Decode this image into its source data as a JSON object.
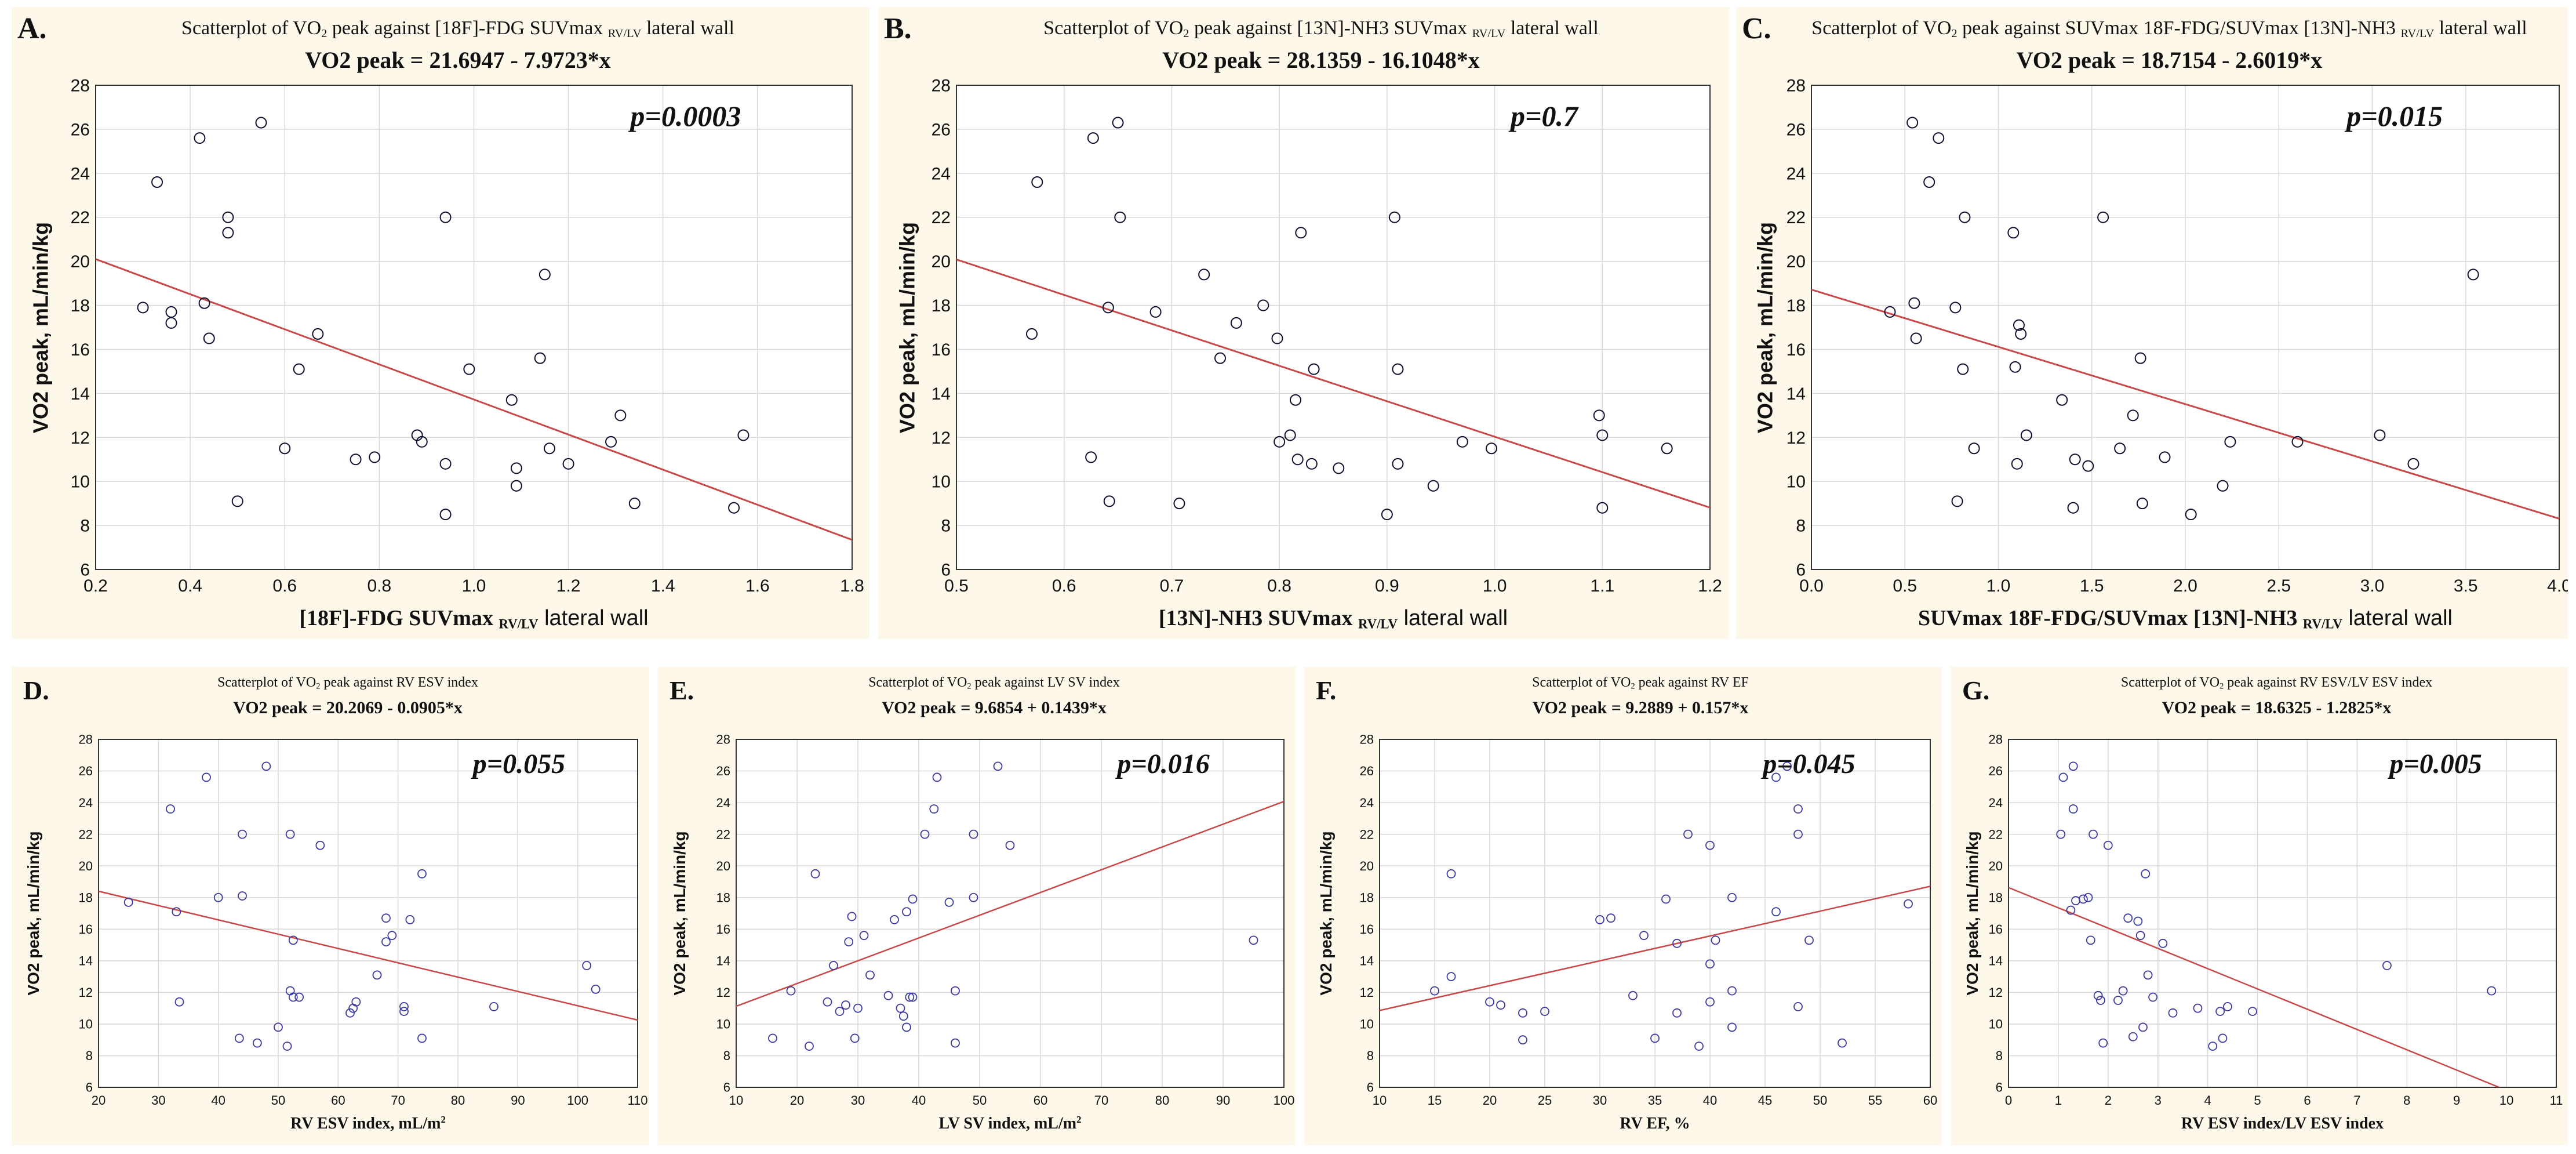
{
  "panels": [
    {
      "letter": "A.",
      "title_pre": "Scatterplot of VO",
      "title_sub": "2",
      "title_post": " peak against [18F]-FDG SUVmax ",
      "title_sub2": "RV/LV",
      "title_tail": " lateral wall",
      "formula": "VO2 peak = 21.6947 - 7.9723*x",
      "xlabel_main": "[18F]-FDG SUVmax ",
      "xlabel_sub": "RV/LV",
      "xlabel_tail": " lateral wall",
      "ylabel": "VO2 peak, mL/min/kg",
      "pvalue": "p=0.0003"
    },
    {
      "letter": "B.",
      "title_pre": "Scatterplot of VO",
      "title_sub": "2",
      "title_post": " peak against [13N]-NH3 SUVmax ",
      "title_sub2": "RV/LV",
      "title_tail": " lateral wall",
      "formula": "VO2 peak = 28.1359 - 16.1048*x",
      "xlabel_main": "[13N]-NH3 SUVmax ",
      "xlabel_sub": "RV/LV",
      "xlabel_tail": " lateral wall",
      "ylabel": "VO2 peak, mL/min/kg",
      "pvalue": "p=0.7"
    },
    {
      "letter": "C.",
      "title_pre": "Scatterplot of VO",
      "title_sub": "2",
      "title_post": " peak against SUVmax 18F-FDG/SUVmax [13N]-NH3 ",
      "title_sub2": "RV/LV",
      "title_tail": " lateral wall",
      "formula": "VO2 peak = 18.7154 - 2.6019*x",
      "xlabel_main": "SUVmax 18F-FDG/SUVmax [13N]-NH3 ",
      "xlabel_sub": "RV/LV",
      "xlabel_tail": " lateral wall",
      "ylabel": "VO2 peak, mL/min/kg",
      "pvalue": "p=0.015"
    },
    {
      "letter": "D.",
      "title_pre": "Scatterplot of VO",
      "title_sub": "2",
      "title_post": " peak against RV ESV index",
      "title_sub2": "",
      "title_tail": "",
      "formula": "VO2 peak = 20.2069 - 0.0905*x",
      "xlabel_main": "RV ESV index, mL/m",
      "xlabel_sub": "2",
      "xlabel_tail": "",
      "ylabel": "VO2 peak, mL/min/kg",
      "pvalue": "p=0.055"
    },
    {
      "letter": "E.",
      "title_pre": "Scatterplot of VO",
      "title_sub": "2",
      "title_post": " peak against LV SV index",
      "title_sub2": "",
      "title_tail": "",
      "formula": "VO2 peak = 9.6854 + 0.1439*x",
      "xlabel_main": "LV SV index, mL/m",
      "xlabel_sub": "2",
      "xlabel_tail": "",
      "ylabel": "VO2 peak, mL/min/kg",
      "pvalue": "p=0.016"
    },
    {
      "letter": "F.",
      "title_pre": "Scatterplot of VO",
      "title_sub": "2",
      "title_post": " peak against RV EF",
      "title_sub2": "",
      "title_tail": "",
      "formula": "VO2 peak = 9.2889 + 0.157*x",
      "xlabel_main": "RV EF, %",
      "xlabel_sub": "",
      "xlabel_tail": "",
      "ylabel": "VO2 peak, mL/min/kg",
      "pvalue": "p=0.045"
    },
    {
      "letter": "G.",
      "title_pre": "Scatterplot of VO",
      "title_sub": "2",
      "title_post": " peak against RV ESV/LV ESV index",
      "title_sub2": "",
      "title_tail": "",
      "formula": "VO2 peak = 18.6325 - 1.2825*x",
      "xlabel_main": "RV ESV index/LV ESV index",
      "xlabel_sub": "",
      "xlabel_tail": "",
      "ylabel": "VO2 peak, mL/min/kg",
      "pvalue": "p=0.005"
    }
  ],
  "colors": {
    "panel_bg": "#fdf8e9",
    "plot_bg": "#ffffff",
    "grid": "#d8d8d8",
    "regression": "#c84848",
    "marker_top": "#101030",
    "marker_bottom": "#3a3aa0"
  },
  "chart_data": [
    {
      "type": "scatter",
      "title": "Scatterplot of VO2 peak against [18F]-FDG SUVmax RV/LV lateral wall",
      "xlabel": "[18F]-FDG SUVmax RV/LV lateral wall",
      "ylabel": "VO2 peak, mL/min/kg",
      "xlim": [
        0.2,
        1.8
      ],
      "ylim": [
        6,
        28
      ],
      "xticks": [
        0.2,
        0.4,
        0.6,
        0.8,
        1.0,
        1.2,
        1.4,
        1.6,
        1.8
      ],
      "xtick_labels": [
        "0.2",
        "0.4",
        "0.6",
        "0.8",
        "1.0",
        "1.2",
        "1.4",
        "1.6",
        "1.8"
      ],
      "yticks": [
        6,
        8,
        10,
        12,
        14,
        16,
        18,
        20,
        22,
        24,
        26,
        28
      ],
      "grid": true,
      "regression": {
        "intercept": 21.6947,
        "slope": -7.9723
      },
      "x": [
        0.3,
        0.33,
        0.36,
        0.36,
        0.42,
        0.43,
        0.44,
        0.48,
        0.48,
        0.5,
        0.55,
        0.6,
        0.63,
        0.67,
        0.75,
        0.79,
        0.88,
        0.89,
        0.94,
        0.94,
        0.94,
        0.99,
        1.08,
        1.09,
        1.09,
        1.14,
        1.15,
        1.16,
        1.2,
        1.29,
        1.31,
        1.34,
        1.55,
        1.57
      ],
      "y": [
        17.9,
        23.6,
        17.2,
        17.7,
        25.6,
        18.1,
        16.5,
        22.0,
        21.3,
        9.1,
        26.3,
        11.5,
        15.1,
        16.7,
        11.0,
        11.1,
        12.1,
        11.8,
        22.0,
        10.8,
        8.5,
        15.1,
        13.7,
        9.8,
        10.6,
        15.6,
        19.4,
        11.5,
        10.8,
        11.8,
        13.0,
        9.0,
        8.8,
        12.1
      ]
    },
    {
      "type": "scatter",
      "title": "Scatterplot of VO2 peak against [13N]-NH3 SUVmax RV/LV lateral wall",
      "xlabel": "[13N]-NH3 SUVmax RV/LV lateral wall",
      "ylabel": "VO2 peak, mL/min/kg",
      "xlim": [
        0.5,
        1.2
      ],
      "ylim": [
        6,
        28
      ],
      "xticks": [
        0.5,
        0.6,
        0.7,
        0.8,
        0.9,
        1.0,
        1.1,
        1.2
      ],
      "xtick_labels": [
        "0.5",
        "0.6",
        "0.7",
        "0.8",
        "0.9",
        "1.0",
        "1.1",
        "1.2"
      ],
      "yticks": [
        6,
        8,
        10,
        12,
        14,
        16,
        18,
        20,
        22,
        24,
        26,
        28
      ],
      "grid": true,
      "regression": {
        "intercept": 28.1359,
        "slope": -16.1048
      },
      "x": [
        0.57,
        0.575,
        0.625,
        0.627,
        0.641,
        0.642,
        0.65,
        0.652,
        0.685,
        0.707,
        0.73,
        0.745,
        0.76,
        0.785,
        0.798,
        0.8,
        0.81,
        0.815,
        0.817,
        0.82,
        0.83,
        0.832,
        0.855,
        0.9,
        0.907,
        0.91,
        0.91,
        0.943,
        0.97,
        0.997,
        1.097,
        1.1,
        1.1,
        1.16
      ],
      "y": [
        16.7,
        23.6,
        11.1,
        25.6,
        17.9,
        9.1,
        26.3,
        22.0,
        17.7,
        9.0,
        19.4,
        15.6,
        17.2,
        18.0,
        16.5,
        11.8,
        12.1,
        13.7,
        11.0,
        21.3,
        10.8,
        15.1,
        10.6,
        8.5,
        22.0,
        15.1,
        10.8,
        9.8,
        11.8,
        11.5,
        13.0,
        12.1,
        8.8,
        11.5
      ]
    },
    {
      "type": "scatter",
      "title": "Scatterplot of VO2 peak against SUVmax 18F-FDG/SUVmax [13N]-NH3 RV/LV lateral wall",
      "xlabel": "SUVmax 18F-FDG/SUVmax [13N]-NH3 RV/LV lateral wall",
      "ylabel": "VO2 peak, mL/min/kg",
      "xlim": [
        0.0,
        4.0
      ],
      "ylim": [
        6,
        28
      ],
      "xticks": [
        0.0,
        0.5,
        1.0,
        1.5,
        2.0,
        2.5,
        3.0,
        3.5,
        4.0
      ],
      "xtick_labels": [
        "0.0",
        "0.5",
        "1.0",
        "1.5",
        "2.0",
        "2.5",
        "3.0",
        "3.5",
        "4.0"
      ],
      "yticks": [
        6,
        8,
        10,
        12,
        14,
        16,
        18,
        20,
        22,
        24,
        26,
        28
      ],
      "grid": true,
      "regression": {
        "intercept": 18.7154,
        "slope": -2.6019
      },
      "x": [
        0.42,
        0.54,
        0.55,
        0.56,
        0.63,
        0.68,
        0.77,
        0.78,
        0.81,
        0.82,
        0.87,
        1.08,
        1.09,
        1.1,
        1.11,
        1.12,
        1.15,
        1.34,
        1.4,
        1.41,
        1.48,
        1.56,
        1.65,
        1.72,
        1.76,
        1.77,
        1.89,
        2.03,
        2.2,
        2.24,
        2.6,
        3.04,
        3.22,
        3.54
      ],
      "y": [
        17.7,
        26.3,
        18.1,
        16.5,
        23.6,
        25.6,
        17.9,
        9.1,
        15.1,
        22.0,
        11.5,
        21.3,
        15.2,
        10.8,
        17.1,
        16.7,
        12.1,
        13.7,
        8.8,
        11.0,
        10.7,
        22.0,
        11.5,
        13.0,
        15.6,
        9.0,
        11.1,
        8.5,
        9.8,
        11.8,
        11.8,
        12.1,
        10.8,
        19.4
      ]
    },
    {
      "type": "scatter",
      "title": "Scatterplot of VO2 peak against RV ESV index",
      "xlabel": "RV ESV index, mL/m2",
      "ylabel": "VO2 peak, mL/min/kg",
      "xlim": [
        20,
        110
      ],
      "ylim": [
        6,
        28
      ],
      "xticks": [
        20,
        30,
        40,
        50,
        60,
        70,
        80,
        90,
        100,
        110
      ],
      "xtick_labels": [
        "20",
        "30",
        "40",
        "50",
        "60",
        "70",
        "80",
        "90",
        "100",
        "110"
      ],
      "yticks": [
        6,
        8,
        10,
        12,
        14,
        16,
        18,
        20,
        22,
        24,
        26,
        28
      ],
      "grid": true,
      "regression": {
        "intercept": 20.2069,
        "slope": -0.0905
      },
      "x": [
        25,
        32,
        33,
        33.5,
        38,
        40,
        43.5,
        44,
        44,
        46.5,
        48,
        50,
        51.5,
        52,
        52,
        52.5,
        52.5,
        53.5,
        57,
        62,
        62.5,
        63,
        66.5,
        68,
        68,
        69,
        71,
        71,
        72,
        74,
        74,
        86,
        101.5,
        103
      ],
      "y": [
        17.7,
        23.6,
        17.1,
        11.4,
        25.6,
        18.0,
        9.1,
        22.0,
        18.1,
        8.8,
        26.3,
        9.8,
        8.6,
        12.1,
        22.0,
        15.3,
        11.7,
        11.7,
        21.3,
        10.7,
        11.0,
        11.4,
        13.1,
        16.7,
        15.2,
        15.6,
        10.8,
        11.1,
        16.6,
        9.1,
        19.5,
        11.1,
        13.7,
        12.2
      ]
    },
    {
      "type": "scatter",
      "title": "Scatterplot of VO2 peak against LV SV index",
      "xlabel": "LV SV index, mL/m2",
      "ylabel": "VO2 peak, mL/min/kg",
      "xlim": [
        10,
        100
      ],
      "ylim": [
        6,
        28
      ],
      "xticks": [
        10,
        20,
        30,
        40,
        50,
        60,
        70,
        80,
        90,
        100
      ],
      "xtick_labels": [
        "10",
        "20",
        "30",
        "40",
        "50",
        "60",
        "70",
        "80",
        "90",
        "100"
      ],
      "yticks": [
        6,
        8,
        10,
        12,
        14,
        16,
        18,
        20,
        22,
        24,
        26,
        28
      ],
      "grid": true,
      "regression": {
        "intercept": 9.6854,
        "slope": 0.1439
      },
      "x": [
        16,
        19,
        22,
        23,
        25,
        26,
        27,
        28,
        28.5,
        29,
        29.5,
        30,
        31,
        32,
        35,
        36,
        37,
        37.5,
        38,
        38,
        38.5,
        39,
        39,
        41,
        42.5,
        43,
        45,
        46,
        46,
        49,
        49,
        53,
        55,
        95
      ],
      "y": [
        9.1,
        12.1,
        8.6,
        19.5,
        11.4,
        13.7,
        10.8,
        11.2,
        15.2,
        16.8,
        9.1,
        11.0,
        15.6,
        13.1,
        11.8,
        16.6,
        11.0,
        10.5,
        17.1,
        9.8,
        11.7,
        17.9,
        11.7,
        22.0,
        23.6,
        25.6,
        17.7,
        8.8,
        12.1,
        18.0,
        22.0,
        26.3,
        21.3,
        15.3
      ]
    },
    {
      "type": "scatter",
      "title": "Scatterplot of VO2 peak against RV EF",
      "xlabel": "RV EF, %",
      "ylabel": "VO2 peak, mL/min/kg",
      "xlim": [
        10,
        60
      ],
      "ylim": [
        6,
        28
      ],
      "xticks": [
        10,
        15,
        20,
        25,
        30,
        35,
        40,
        45,
        50,
        55,
        60
      ],
      "xtick_labels": [
        "10",
        "15",
        "20",
        "25",
        "30",
        "35",
        "40",
        "45",
        "50",
        "55",
        "60"
      ],
      "yticks": [
        6,
        8,
        10,
        12,
        14,
        16,
        18,
        20,
        22,
        24,
        26,
        28
      ],
      "grid": true,
      "regression": {
        "intercept": 9.2889,
        "slope": 0.157
      },
      "x": [
        15,
        16.5,
        16.5,
        20,
        21,
        23,
        23,
        25,
        30,
        31,
        33,
        34,
        35,
        36,
        37,
        37,
        38,
        39,
        40,
        40,
        40,
        40.5,
        42,
        42,
        42,
        46,
        46,
        47,
        48,
        48,
        48,
        49,
        52,
        58
      ],
      "y": [
        12.1,
        13.0,
        19.5,
        11.4,
        11.2,
        10.7,
        9.0,
        10.8,
        16.6,
        16.7,
        11.8,
        15.6,
        9.1,
        17.9,
        15.1,
        10.7,
        22.0,
        8.6,
        21.3,
        13.8,
        11.4,
        15.3,
        18.0,
        12.1,
        9.8,
        25.6,
        17.1,
        26.3,
        23.6,
        22.0,
        11.1,
        15.3,
        8.8,
        17.6
      ]
    },
    {
      "type": "scatter",
      "title": "Scatterplot of VO2 peak against RV ESV/LV ESV index",
      "xlabel": "RV ESV index/LV ESV index",
      "ylabel": "VO2 peak, mL/min/kg",
      "xlim": [
        0,
        11
      ],
      "ylim": [
        6,
        28
      ],
      "xticks": [
        0,
        1,
        2,
        3,
        4,
        5,
        6,
        7,
        8,
        9,
        10,
        11
      ],
      "xtick_labels": [
        "0",
        "1",
        "2",
        "3",
        "4",
        "5",
        "6",
        "7",
        "8",
        "9",
        "10",
        "11"
      ],
      "yticks": [
        6,
        8,
        10,
        12,
        14,
        16,
        18,
        20,
        22,
        24,
        26,
        28
      ],
      "grid": true,
      "regression": {
        "intercept": 18.6325,
        "slope": -1.2825
      },
      "x": [
        1.05,
        1.1,
        1.25,
        1.3,
        1.3,
        1.35,
        1.5,
        1.6,
        1.65,
        1.7,
        1.8,
        1.85,
        1.9,
        2.0,
        2.2,
        2.3,
        2.4,
        2.5,
        2.6,
        2.65,
        2.7,
        2.75,
        2.8,
        2.9,
        3.1,
        3.3,
        3.8,
        4.1,
        4.25,
        4.3,
        4.4,
        4.9,
        7.6,
        9.7
      ],
      "y": [
        22.0,
        25.6,
        17.2,
        26.3,
        23.6,
        17.8,
        17.9,
        18.0,
        15.3,
        22.0,
        11.8,
        11.5,
        8.8,
        21.3,
        11.5,
        12.1,
        16.7,
        9.2,
        16.5,
        15.6,
        9.8,
        19.5,
        13.1,
        11.7,
        15.1,
        10.7,
        11.0,
        8.6,
        10.8,
        9.1,
        11.1,
        10.8,
        13.7,
        12.1
      ]
    }
  ]
}
